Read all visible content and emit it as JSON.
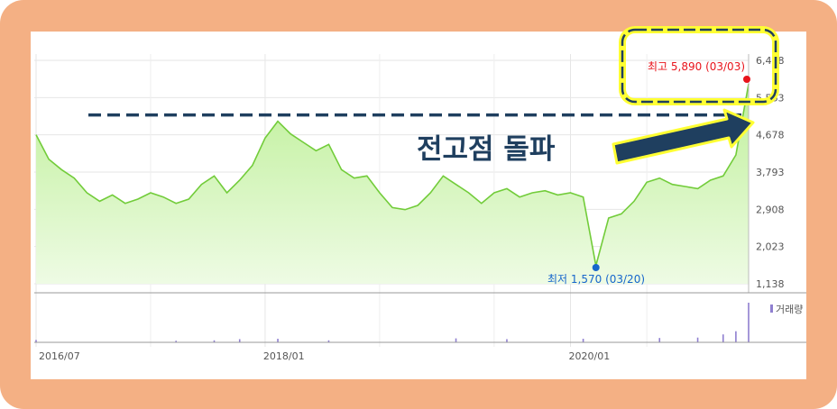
{
  "chart_data": {
    "type": "area",
    "y_ticks": [
      "6,448",
      "5,563",
      "4,678",
      "3,793",
      "2,908",
      "2,023",
      "1,138"
    ],
    "y_tick_values": [
      6448,
      5563,
      4678,
      3793,
      2908,
      2023,
      1138
    ],
    "ylim": [
      1138,
      6448
    ],
    "x_ticks": [
      "2016/07",
      "2018/01",
      "2020/01"
    ],
    "x_tick_dates": [
      "2016-07",
      "2018-01",
      "2020-01"
    ],
    "xlim": [
      "2016-07",
      "2021-03"
    ],
    "grid": true,
    "series": [
      {
        "values": [
          [
            "2016-07",
            4680
          ],
          [
            "2016-08",
            4100
          ],
          [
            "2016-09",
            3850
          ],
          [
            "2016-10",
            3650
          ],
          [
            "2016-11",
            3300
          ],
          [
            "2016-12",
            3100
          ],
          [
            "2017-01",
            3250
          ],
          [
            "2017-02",
            3050
          ],
          [
            "2017-03",
            3150
          ],
          [
            "2017-04",
            3300
          ],
          [
            "2017-05",
            3200
          ],
          [
            "2017-06",
            3050
          ],
          [
            "2017-07",
            3150
          ],
          [
            "2017-08",
            3500
          ],
          [
            "2017-09",
            3700
          ],
          [
            "2017-10",
            3300
          ],
          [
            "2017-11",
            3600
          ],
          [
            "2017-12",
            3950
          ],
          [
            "2018-01",
            4600
          ],
          [
            "2018-02",
            5000
          ],
          [
            "2018-03",
            4700
          ],
          [
            "2018-04",
            4500
          ],
          [
            "2018-05",
            4300
          ],
          [
            "2018-06",
            4450
          ],
          [
            "2018-07",
            3850
          ],
          [
            "2018-08",
            3650
          ],
          [
            "2018-09",
            3700
          ],
          [
            "2018-10",
            3300
          ],
          [
            "2018-11",
            2950
          ],
          [
            "2018-12",
            2900
          ],
          [
            "2019-01",
            3000
          ],
          [
            "2019-02",
            3300
          ],
          [
            "2019-03",
            3700
          ],
          [
            "2019-04",
            3500
          ],
          [
            "2019-05",
            3300
          ],
          [
            "2019-06",
            3050
          ],
          [
            "2019-07",
            3300
          ],
          [
            "2019-08",
            3400
          ],
          [
            "2019-09",
            3200
          ],
          [
            "2019-10",
            3300
          ],
          [
            "2019-11",
            3350
          ],
          [
            "2019-12",
            3250
          ],
          [
            "2020-01",
            3300
          ],
          [
            "2020-02",
            3200
          ],
          [
            "2020-03",
            1570
          ],
          [
            "2020-04",
            2700
          ],
          [
            "2020-05",
            2800
          ],
          [
            "2020-06",
            3100
          ],
          [
            "2020-07",
            3550
          ],
          [
            "2020-08",
            3650
          ],
          [
            "2020-09",
            3500
          ],
          [
            "2020-10",
            3450
          ],
          [
            "2020-11",
            3400
          ],
          [
            "2020-12",
            3600
          ],
          [
            "2021-01",
            3700
          ],
          [
            "2021-02",
            4200
          ],
          [
            "2021-03",
            5890
          ]
        ]
      }
    ],
    "volume": {
      "label": "거래량",
      "dates": [
        "2016-07",
        "2017-06",
        "2017-09",
        "2017-11",
        "2018-02",
        "2018-06",
        "2019-04",
        "2019-08",
        "2020-02",
        "2020-08",
        "2020-11",
        "2021-01",
        "2021-02",
        "2021-03"
      ],
      "values": [
        6,
        4,
        5,
        8,
        9,
        5,
        10,
        8,
        9,
        11,
        12,
        20,
        28,
        100
      ]
    },
    "annotations": {
      "high": {
        "label": "최고 5,890 (03/03)",
        "date": "2021-03",
        "value": 5890,
        "color": "#e8141b"
      },
      "low": {
        "label": "최저 1,570 (03/20)",
        "date": "2020-03",
        "value": 1570,
        "color": "#1766cc"
      },
      "callout": {
        "label": "전고점 돌파",
        "value": 5000
      }
    }
  },
  "colors": {
    "frame": "#f4b084",
    "line": "#72cc3a",
    "area_top": "#bff09a",
    "area_bottom": "#eefbe4",
    "dash": "#1f3f5f",
    "volume": "#8f7fd0",
    "highlight_border": "#ffff33"
  }
}
